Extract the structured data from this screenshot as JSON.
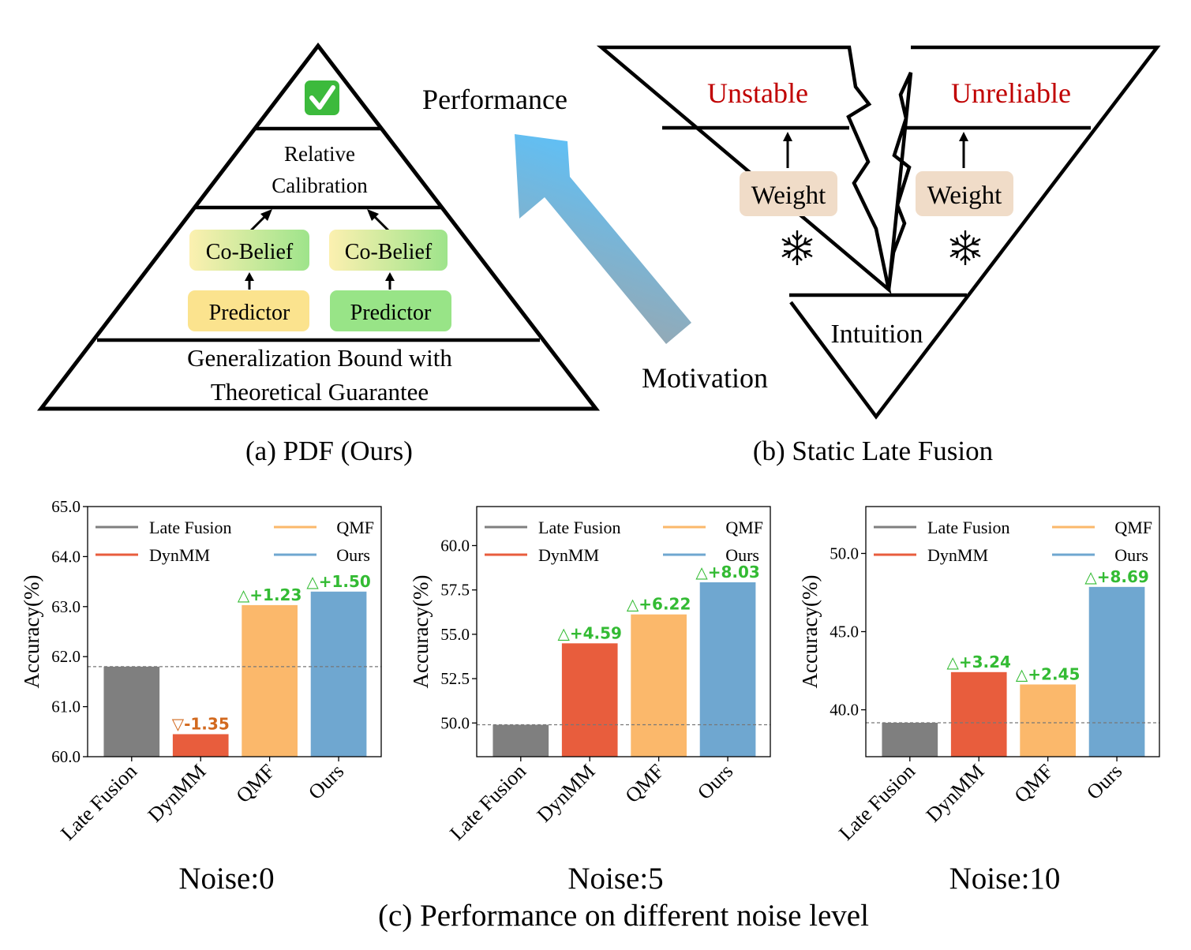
{
  "panel_a": {
    "top_icon": "check-mark-icon",
    "level2": [
      "Relative",
      "Calibration"
    ],
    "co_belief": [
      "Co-Belief",
      "Co-Belief"
    ],
    "predictor": [
      "Predictor",
      "Predictor"
    ],
    "base": [
      "Generalization Bound with",
      "Theoretical Guarantee"
    ],
    "caption": "(a) PDF (Ours)",
    "colors": {
      "yellow": "#fbe38e",
      "green": "#98e487"
    }
  },
  "arrow": {
    "top_label": "Performance",
    "bottom_label": "Motivation",
    "icon": "gradient-arrow-icon"
  },
  "panel_b": {
    "top_left": "Unstable",
    "top_right": "Unreliable",
    "weights": [
      "Weight",
      "Weight"
    ],
    "frozen_icon": "snowflake-icon",
    "bottom": "Intuition",
    "caption": "(b) Static Late Fusion",
    "colors": {
      "warning_text": "#c00000",
      "weight_box": "#f0dcc8"
    }
  },
  "chart_data": [
    {
      "type": "bar",
      "title": "Noise:0",
      "ylabel": "Accuracy(%)",
      "categories": [
        "Late Fusion",
        "DynMM",
        "QMF",
        "Ours"
      ],
      "values": [
        61.8,
        60.45,
        63.03,
        63.3
      ],
      "deltas": [
        "",
        "▽-1.35",
        "△+1.23",
        "△+1.50"
      ],
      "ylim": [
        60.0,
        65.0
      ],
      "yticks": [
        "60.0",
        "61.0",
        "62.0",
        "63.0",
        "64.0",
        "65.0"
      ],
      "baseline": 61.8
    },
    {
      "type": "bar",
      "title": "Noise:5",
      "ylabel": "Accuracy(%)",
      "categories": [
        "Late Fusion",
        "DynMM",
        "QMF",
        "Ours"
      ],
      "values": [
        49.9,
        54.49,
        56.12,
        57.93
      ],
      "deltas": [
        "",
        "△+4.59",
        "△+6.22",
        "△+8.03"
      ],
      "ylim": [
        48.1,
        62.2
      ],
      "yticks": [
        "50.0",
        "52.5",
        "55.0",
        "57.5",
        "60.0"
      ],
      "baseline": 49.9
    },
    {
      "type": "bar",
      "title": "Noise:10",
      "ylabel": "Accuracy(%)",
      "categories": [
        "Late Fusion",
        "DynMM",
        "QMF",
        "Ours"
      ],
      "values": [
        39.17,
        42.41,
        41.62,
        47.86
      ],
      "deltas": [
        "",
        "△+3.24",
        "△+2.45",
        "△+8.69"
      ],
      "ylim": [
        37.0,
        53.0
      ],
      "yticks": [
        "40.0",
        "45.0",
        "50.0"
      ],
      "baseline": 39.17
    }
  ],
  "legend": [
    {
      "label": "Late Fusion",
      "color": "#7f7f7f"
    },
    {
      "label": "QMF",
      "color": "#fbb86b"
    },
    {
      "label": "DynMM",
      "color": "#e85d3d"
    },
    {
      "label": "Ours",
      "color": "#6fa7d0"
    }
  ],
  "bar_colors": [
    "#7f7f7f",
    "#e85d3d",
    "#fbb86b",
    "#6fa7d0"
  ],
  "delta_colors": {
    "up": "#33bb33",
    "down": "#d2691e"
  },
  "caption_c": "(c) Performance on different noise level"
}
